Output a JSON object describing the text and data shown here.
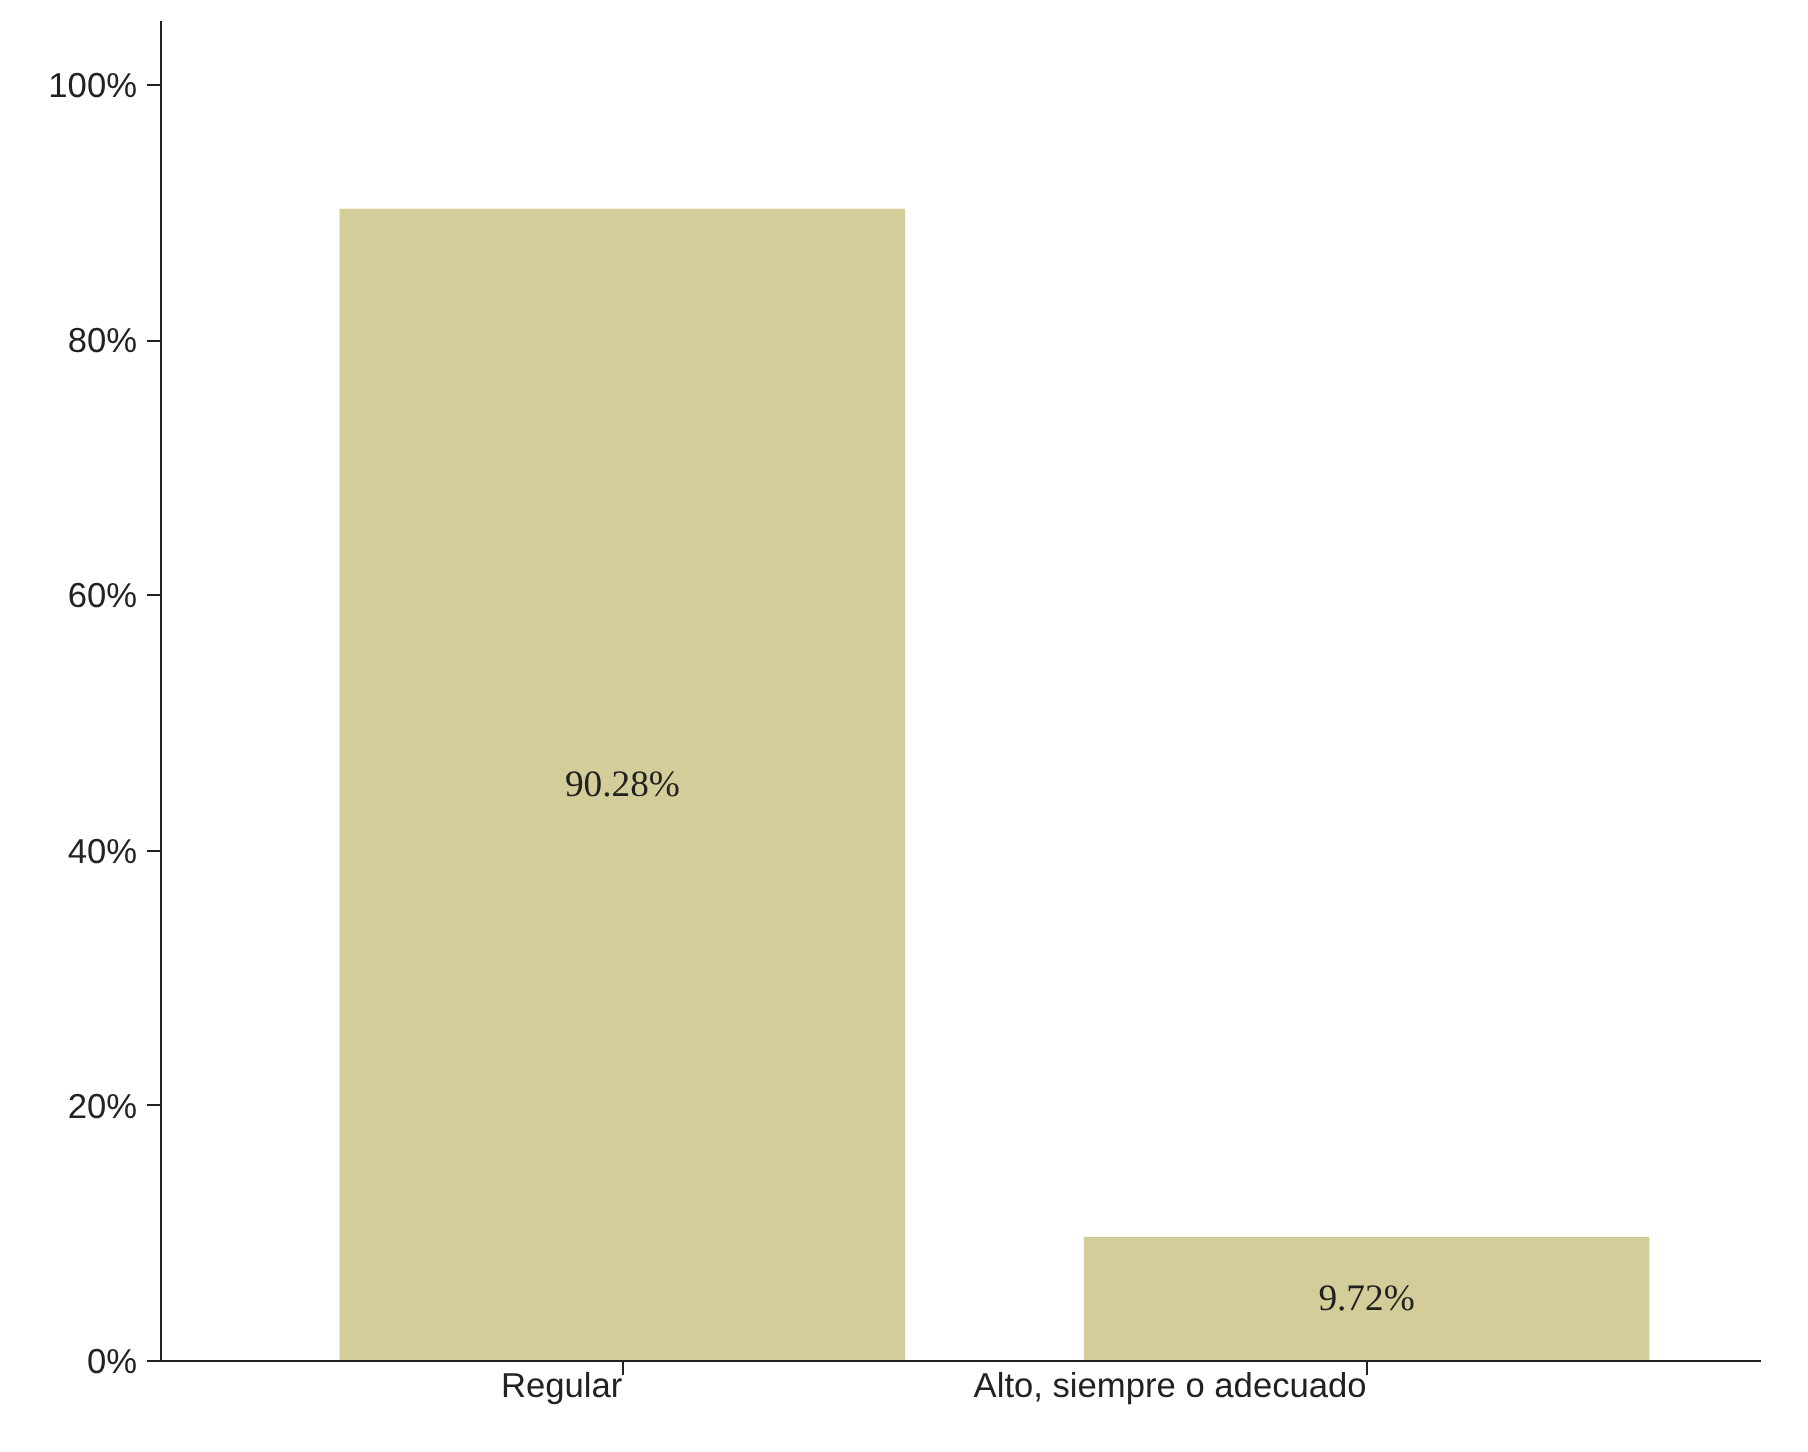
{
  "chart_data": {
    "type": "bar",
    "categories": [
      "Regular",
      "Alto, siempre o adecuado"
    ],
    "values": [
      90.28,
      9.72
    ],
    "value_labels": [
      "90.28%",
      "9.72%"
    ],
    "color": "#d3ce99",
    "ylim": [
      0,
      105
    ],
    "yticks": [
      {
        "value": 0,
        "label": "0%"
      },
      {
        "value": 20,
        "label": "20%"
      },
      {
        "value": 40,
        "label": "40%"
      },
      {
        "value": 60,
        "label": "60%"
      },
      {
        "value": 80,
        "label": "80%"
      },
      {
        "value": 100,
        "label": "100%"
      }
    ],
    "grid": false
  }
}
